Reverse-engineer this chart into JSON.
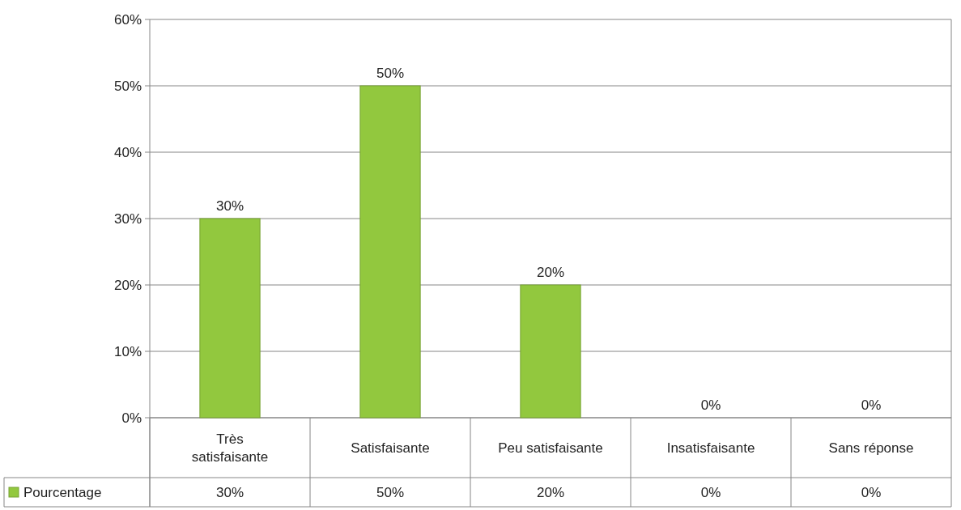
{
  "chart_data": {
    "type": "bar",
    "categories": [
      "Très satisfaisante",
      "Satisfaisante",
      "Peu satisfaisante",
      "Insatisfaisante",
      "Sans réponse"
    ],
    "series": [
      {
        "name": "Pourcentage",
        "color": "#92c83e",
        "values": [
          30,
          50,
          20,
          0,
          0
        ],
        "value_labels": [
          "30%",
          "50%",
          "20%",
          "0%",
          "0%"
        ]
      }
    ],
    "ylim": [
      0,
      60
    ],
    "yticks": [
      {
        "value": 0,
        "label": "0%"
      },
      {
        "value": 10,
        "label": "10%"
      },
      {
        "value": 20,
        "label": "20%"
      },
      {
        "value": 30,
        "label": "30%"
      },
      {
        "value": 40,
        "label": "40%"
      },
      {
        "value": 50,
        "label": "50%"
      },
      {
        "value": 60,
        "label": "60%"
      }
    ],
    "grid": "y",
    "legend": "bottom left"
  }
}
